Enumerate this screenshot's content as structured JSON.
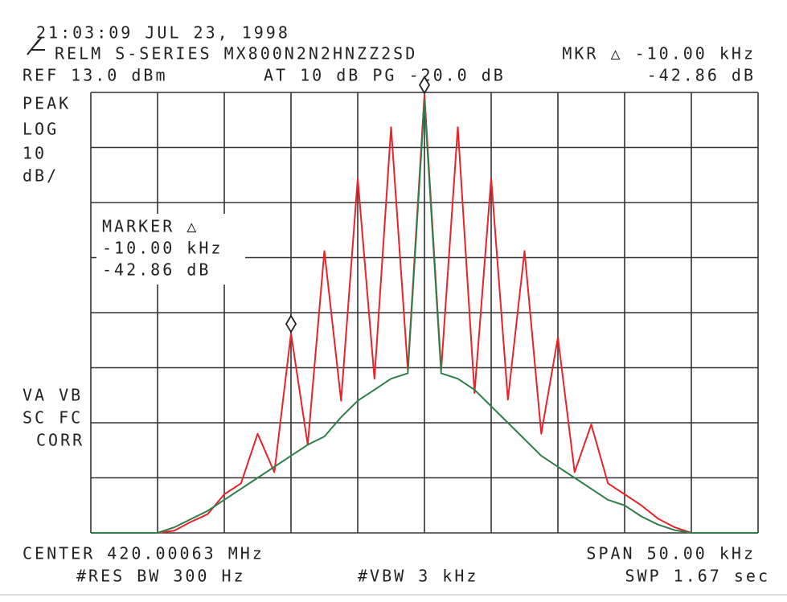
{
  "chart_data": {
    "type": "line",
    "timestamp": "21:03:09 JUL 23, 1998",
    "title": "RELM S-SERIES MX800N2N2HNZZ2SD",
    "marker_readout": "MKR △ -10.00 kHz",
    "marker_readout_value": "-42.86 dB",
    "reference": "REF 13.0 dBm",
    "attenuation": "AT 10 dB PG -20.0 dB",
    "scale_labels": [
      "PEAK",
      "LOG",
      "10",
      "dB/"
    ],
    "marker_box": [
      "MARKER △",
      "-10.00 kHz",
      "-42.86 dB"
    ],
    "status_labels": [
      "VA VB",
      "SC FC",
      "CORR"
    ],
    "center": "CENTER 420.00063 MHz",
    "span": "SPAN 50.00 kHz",
    "res_bw": "#RES BW 300 Hz",
    "vbw": "#VBW 3 kHz",
    "sweep": "SWP 1.67 sec",
    "xlim": [
      -25,
      25
    ],
    "ylim": [
      -67,
      13
    ],
    "grid": {
      "x_divisions": 10,
      "y_divisions": 8
    },
    "x": [
      -25,
      -23.75,
      -22.5,
      -21.25,
      -20,
      -18.75,
      -17.5,
      -16.25,
      -15,
      -13.75,
      -12.5,
      -11.25,
      -10,
      -8.75,
      -7.5,
      -6.25,
      -5,
      -3.75,
      -2.5,
      -1.25,
      0,
      1.25,
      2.5,
      3.75,
      5,
      6.25,
      7.5,
      8.75,
      10,
      11.25,
      12.5,
      13.75,
      15,
      16.25,
      17.5,
      18.75,
      20,
      21.25,
      22.5,
      23.75,
      25
    ],
    "series": [
      {
        "color": "#e8232a",
        "values": [
          -67,
          -67,
          -67,
          -67,
          -67,
          -66.6,
          -65,
          -63.6,
          -60,
          -58,
          -49,
          -56,
          -30.8,
          -51,
          -15.8,
          -43,
          -2.6,
          -39,
          6.7,
          -37.4,
          12.6,
          -37.4,
          6.7,
          -41.6,
          -2.6,
          -42.8,
          -15.8,
          -49,
          -31.5,
          -56,
          -47.3,
          -58,
          -60,
          -62,
          -64.4,
          -66,
          -67,
          -67,
          -67,
          -67,
          -67
        ]
      },
      {
        "color": "#2e7d4a",
        "values": [
          -67,
          -67,
          -67,
          -67,
          -67,
          -66,
          -64.5,
          -63,
          -61,
          -59,
          -57,
          -55,
          -53,
          -51,
          -49.5,
          -46,
          -43,
          -41,
          -39,
          -38,
          11.5,
          -38,
          -39,
          -41,
          -44,
          -47,
          -50,
          -53,
          -55,
          -57,
          -59,
          -61,
          -62,
          -64,
          -65.5,
          -66.5,
          -67,
          -67,
          -67,
          -67,
          -67
        ]
      }
    ],
    "markers": [
      {
        "series": 0,
        "index": 12
      },
      {
        "series": 0,
        "index": 20
      }
    ]
  }
}
